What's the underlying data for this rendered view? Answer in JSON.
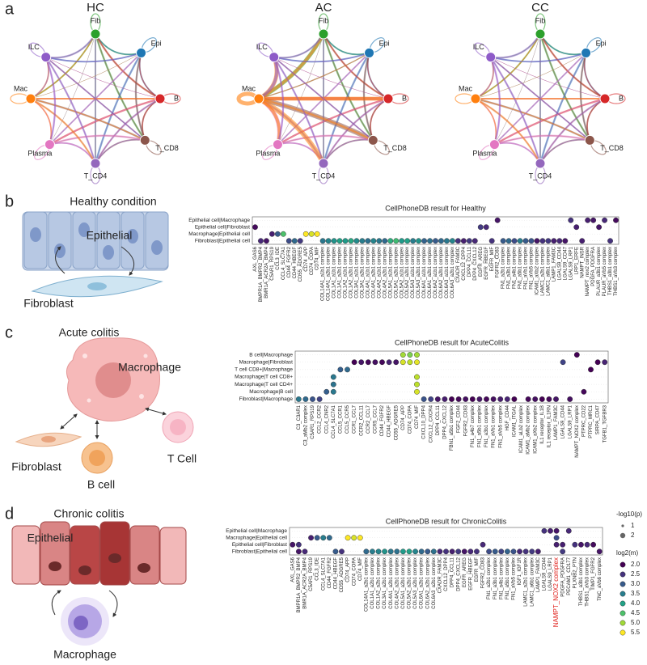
{
  "panel_labels": [
    "a",
    "b",
    "c",
    "d"
  ],
  "circle_plots": {
    "titles": [
      "HC",
      "AC",
      "CC"
    ],
    "nodes": [
      "Fib",
      "Epi",
      "B",
      "T_CD8",
      "T_CD4",
      "Plasma",
      "Mac",
      "ILC"
    ],
    "node_colors": [
      "#2ca02c",
      "#1f77b4",
      "#d62728",
      "#8c564b",
      "#9467bd",
      "#e377c2",
      "#ff7f0e",
      "#8e5bc8"
    ]
  },
  "cartoons": {
    "b": {
      "title": "Healthy condition",
      "labels": [
        "Epithelial",
        "Fibroblast"
      ]
    },
    "c": {
      "title": "Acute colitis",
      "labels": [
        "Macrophage",
        "Fibroblast",
        "B cell",
        "T Cell"
      ]
    },
    "d": {
      "title": "Chronic colitis",
      "labels": [
        "Epithelial",
        "Macrophage"
      ]
    }
  },
  "chart_data": [
    {
      "type": "dotplot",
      "title": "CellPhoneDB result for Healthy",
      "color_range": [
        2,
        5.5
      ],
      "rows": [
        "Epithelial cell|Macrophage",
        "Epithelial cell|Fibroblast",
        "Macrophage|Epithelial cell",
        "Fibroblast|Epithelial cell"
      ],
      "columns": [
        "AXL_GAS6",
        "BMPR1A_BMPR2_BMP4",
        "BMR1A_ACR2A_BMP4",
        "C5AR1_RPS19",
        "CCL3_IDE",
        "CCL4_SLC7A1",
        "CD44_FGFR2",
        "CD44_HBEGF",
        "CD55_ADGRE5",
        "CD74_APP",
        "CD74_COPA",
        "CD74_MIF",
        "COL14A1_a1b1 complex",
        "COL14A1_a2b1 complex",
        "COL1A1_a1b1 complex",
        "COL1A1_a2b1 complex",
        "COL1A2_a1b1 complex",
        "COL1A2_a2b1 complex",
        "COL3A1_a1b1 complex",
        "COL3A1_a2b1 complex",
        "COL4A1_a1b1 complex",
        "COL4A1_a2b1 complex",
        "COL4A2_a1b1 complex",
        "COL4A2_a2b1 complex",
        "COL5A1_a1b1 complex",
        "COL5A1_a2b1 complex",
        "COL5A2_a1b1 complex",
        "COL5A2_a2b1 complex",
        "COL5A3_a1b1 complex",
        "COL5A3_a2b1 complex",
        "COL6A1_a1b1 complex",
        "COL6A1_a2b1 complex",
        "COL6A2_a1b1 complex",
        "COL6A2_a2b1 complex",
        "COL6A3_a1b1 complex",
        "COL6A3_a2b1 complex",
        "CXADR_FAM3C",
        "CXCL12_DPP4",
        "DPP4_CCL11",
        "DPP4_CXCL12",
        "EGFR_AREG",
        "EGFR_HBEGF",
        "EGFR_MIF",
        "FGFR2_CD83",
        "FN1_a2b1 complex",
        "FN1_a3b1 complex",
        "FN1_a4b1 complex",
        "FN1_a5b1 complex",
        "FN1_aVb1 complex",
        "FN1_aVb5 complex",
        "ICAM1_aXb2 complex",
        "LAMC1_a2b1 complex",
        "LAMC1_a6b1 complex",
        "LAMP1_FAM3C",
        "LGALS9_CD44",
        "LGALS9_CD47",
        "LGALS9_LRP1",
        "LRP1_ERFE",
        "NAMPT_INSR",
        "NAMPT_nox2 complex",
        "PDGFA_PDGFRA",
        "PLAUR_a3b1 complex",
        "PLAUR_aVb5 complex",
        "THBS1_a3b1 complex",
        "THBS1_aVb3 complex"
      ],
      "values": [
        [
          null,
          null,
          null,
          null,
          null,
          null,
          null,
          null,
          null,
          null,
          null,
          null,
          null,
          null,
          null,
          null,
          null,
          null,
          null,
          null,
          null,
          null,
          null,
          null,
          null,
          null,
          null,
          null,
          null,
          null,
          null,
          null,
          null,
          null,
          null,
          null,
          null,
          null,
          null,
          null,
          null,
          null,
          null,
          2.2,
          null,
          null,
          null,
          null,
          null,
          null,
          null,
          null,
          null,
          null,
          null,
          null,
          2.5,
          null,
          null,
          2.3,
          2.2,
          null,
          2.4,
          null,
          2.1
        ],
        [
          2.1,
          null,
          null,
          null,
          null,
          null,
          null,
          null,
          null,
          null,
          null,
          null,
          null,
          null,
          null,
          null,
          null,
          null,
          null,
          null,
          null,
          null,
          null,
          null,
          null,
          null,
          null,
          null,
          null,
          null,
          null,
          null,
          null,
          null,
          null,
          null,
          null,
          null,
          null,
          null,
          2.6,
          2.4,
          null,
          null,
          null,
          null,
          null,
          null,
          null,
          null,
          null,
          null,
          null,
          null,
          null,
          null,
          null,
          2.3,
          null,
          null,
          null,
          2.2,
          null,
          null,
          null
        ],
        [
          null,
          null,
          null,
          2.3,
          3.0,
          4.5,
          null,
          null,
          null,
          5.5,
          5.3,
          5.5,
          null,
          null,
          null,
          null,
          null,
          null,
          null,
          null,
          null,
          null,
          null,
          null,
          null,
          null,
          null,
          null,
          null,
          null,
          null,
          null,
          null,
          null,
          null,
          null,
          null,
          null,
          null,
          null,
          null,
          null,
          null,
          null,
          null,
          null,
          null,
          null,
          null,
          null,
          null,
          null,
          null,
          null,
          null,
          null,
          null,
          null,
          null,
          null,
          null,
          null,
          null,
          null,
          null
        ],
        [
          null,
          2.4,
          2.2,
          null,
          null,
          null,
          2.8,
          3.2,
          2.6,
          null,
          null,
          null,
          3.4,
          3.6,
          3.8,
          4.0,
          3.9,
          4.1,
          3.7,
          3.5,
          3.3,
          3.6,
          3.4,
          3.2,
          4.2,
          4.4,
          3.9,
          4.0,
          3.5,
          3.8,
          3.1,
          3.3,
          3.0,
          3.2,
          3.4,
          3.6,
          2.5,
          2.3,
          2.6,
          2.4,
          null,
          null,
          2.5,
          null,
          3.0,
          3.2,
          2.8,
          3.5,
          3.0,
          2.9,
          2.2,
          2.5,
          2.6,
          2.3,
          2.4,
          2.2,
          null,
          null,
          2.3,
          null,
          null,
          null,
          null,
          2.5,
          null
        ]
      ]
    },
    {
      "type": "dotplot",
      "title": "CellPhoneDB result for AcuteColitis",
      "color_range": [
        1.5,
        6.5
      ],
      "rows": [
        "B cell|Macrophage",
        "Macrophage|Fibroblast",
        "T cell CD8+|Macrophage",
        "Macrophage|T cell CD8+",
        "Macrophage|T cell CD4+",
        "Macrophage|B cell",
        "Fibroblast|Macrophage"
      ],
      "columns": [
        "C3_C3AR1",
        "C3_aMb2 complex",
        "C5AR1_RPS19",
        "CCL2_CCR2",
        "CCL4_CNR2",
        "CCL4_SLC7A1",
        "CCL5_CCR1",
        "CCL5_CCR5",
        "CCR1_CCL7",
        "CCR2_CCL11",
        "CCR2_CCL7",
        "CCR5_CCL7",
        "CD44_FGFR2",
        "CD44_HBEGF",
        "CD55_ADGRE5",
        "CD74_APP",
        "CD74_COPA",
        "CD74_MIF",
        "CXCL10_DPP4",
        "CXCL12_CXCR4",
        "DPP4_CCL11",
        "DPP4_CXCL12",
        "FBN1_a5b1 complex",
        "FGF2_CD44",
        "FGFR2_CD83",
        "FN1_a4b7 complex",
        "FN1_a5b1 complex",
        "FN1_a3b1 complex",
        "FN1_aVb1 complex",
        "FN1_aVb5 complex",
        "HGF_CD44",
        "ICAM1_ITGAL",
        "ICAM1_aLb2 complex",
        "ICAM1_aMb2 complex",
        "ICAM1_aXb2 complex",
        "IL1 receptor_IL1B",
        "IL1 receptor_IL1RN",
        "LAMP1_FAM3C",
        "LGALS9_CD44",
        "LGALS9_LRP1",
        "NAMPT_NOX2 complex",
        "PTPRC_CD22",
        "PTPRC_MRC1",
        "SIRPA_CD47",
        "TGFB1_TGFBR3"
      ],
      "values": [
        [
          null,
          null,
          null,
          null,
          null,
          null,
          null,
          null,
          null,
          null,
          null,
          null,
          null,
          null,
          null,
          5.8,
          5.5,
          5.8,
          null,
          null,
          null,
          null,
          null,
          null,
          null,
          null,
          null,
          null,
          null,
          null,
          null,
          null,
          null,
          null,
          null,
          null,
          null,
          null,
          null,
          null,
          1.5,
          null,
          null,
          null,
          null
        ],
        [
          null,
          null,
          null,
          null,
          null,
          null,
          null,
          null,
          1.5,
          1.8,
          1.6,
          1.7,
          1.6,
          2.0,
          1.8,
          6.2,
          6.0,
          6.3,
          null,
          null,
          null,
          null,
          null,
          null,
          null,
          null,
          null,
          null,
          null,
          null,
          null,
          null,
          null,
          null,
          null,
          null,
          null,
          null,
          2.5,
          null,
          null,
          null,
          null,
          1.5,
          2.0
        ],
        [
          null,
          null,
          null,
          null,
          null,
          null,
          3.0,
          3.2,
          null,
          null,
          null,
          null,
          null,
          null,
          null,
          null,
          null,
          null,
          null,
          null,
          null,
          null,
          null,
          null,
          null,
          null,
          null,
          null,
          null,
          null,
          null,
          null,
          null,
          null,
          null,
          null,
          null,
          null,
          null,
          null,
          null,
          null,
          1.5,
          null,
          null
        ],
        [
          null,
          null,
          null,
          null,
          null,
          3.5,
          null,
          null,
          null,
          null,
          null,
          null,
          null,
          null,
          null,
          null,
          null,
          6.0,
          null,
          null,
          null,
          null,
          null,
          null,
          null,
          null,
          null,
          null,
          null,
          null,
          null,
          null,
          null,
          null,
          null,
          null,
          null,
          null,
          null,
          null,
          null,
          null,
          null,
          null,
          null
        ],
        [
          null,
          null,
          null,
          null,
          null,
          3.4,
          null,
          null,
          null,
          null,
          null,
          null,
          null,
          null,
          null,
          null,
          null,
          6.0,
          null,
          null,
          null,
          null,
          null,
          null,
          null,
          null,
          null,
          null,
          null,
          null,
          null,
          null,
          null,
          null,
          null,
          null,
          null,
          null,
          null,
          null,
          null,
          null,
          null,
          null,
          null
        ],
        [
          null,
          null,
          null,
          null,
          3.0,
          3.5,
          null,
          null,
          null,
          null,
          null,
          null,
          null,
          null,
          null,
          null,
          null,
          6.2,
          null,
          null,
          null,
          null,
          null,
          null,
          null,
          null,
          null,
          null,
          null,
          null,
          null,
          null,
          null,
          null,
          null,
          null,
          null,
          null,
          null,
          null,
          null,
          1.6,
          null,
          null,
          null
        ],
        [
          3.5,
          3.2,
          2.8,
          2.5,
          null,
          null,
          null,
          null,
          null,
          null,
          null,
          null,
          null,
          null,
          null,
          null,
          null,
          null,
          2.8,
          2.5,
          1.8,
          1.9,
          1.5,
          1.6,
          1.7,
          1.5,
          1.8,
          1.6,
          1.7,
          1.9,
          2.0,
          1.5,
          null,
          1.6,
          1.7,
          1.5,
          1.6,
          1.8,
          null,
          1.7,
          null,
          null,
          null,
          null,
          null
        ]
      ]
    },
    {
      "type": "dotplot",
      "title": "CellPhoneDB result for ChronicColitis",
      "rows": [
        "Epithelial cell|Macrophage",
        "Macrophage|Epithelial cell",
        "Epithelial cell|Fibroblast",
        "Fibroblast|Epithelial cell"
      ],
      "columns": [
        "AXL_GAS6",
        "BMPR1A_BMPR2_BMP4",
        "BMR1A_ACR2A_BMP4",
        "C5AR1_RPS19",
        "CCL3_IDE",
        "CCL4_SLC7A1",
        "CD44_FGFR2",
        "CD44_HBEGF",
        "CD55_ADGRE5",
        "CD74_APP",
        "CD74_COPA",
        "CD74_MIF",
        "COL14A1_a2b1 complex",
        "COL1A1_a2b1 complex",
        "COL1A2_a2b1 complex",
        "COL3A1_a2b1 complex",
        "COL4A1_a2b1 complex",
        "COL4A2_a2b1 complex",
        "COL5A1_a2b1 complex",
        "COL5A2_a2b1 complex",
        "COL5A3_a2b1 complex",
        "COL6A1_a2b1 complex",
        "COL6A2_a2b1 complex",
        "COL6A3_a2b1 complex",
        "CXADR_FAM3C",
        "CXCL12_DPP4",
        "DPP4_CCL11",
        "DPP4_CXCL12",
        "EGFR_AREG",
        "EGFR_HBEGF",
        "EGFR_MIF",
        "FGFR2_CD83",
        "FN1_a2b1 complex",
        "FN1_a3b1 complex",
        "FN1_a4b1 complex",
        "FN1_a5b1 complex",
        "FN1_aVb5 complex",
        "IGF1_IGF1R",
        "LAMC1_a2b1 complex",
        "LAMC1_a6b1 complex",
        "LAMP1_FAM3C",
        "LGALS9_CD44",
        "LGALS9_LRP1",
        "NAMPT_NOX2 complex",
        "PDGFA_PDGFRA",
        "PECAM1_CD177",
        "PLXNB2_PTN",
        "THBS1_a3b1 complex",
        "THBS1_aVb3 complex",
        "TIMP1_FGFR2",
        "TNC_aVb6 complex"
      ],
      "highlight_columns": [
        43
      ],
      "highlight_color": "#e0201b",
      "values": [
        [
          null,
          null,
          null,
          null,
          null,
          null,
          null,
          null,
          null,
          null,
          null,
          null,
          null,
          null,
          null,
          null,
          null,
          null,
          null,
          null,
          null,
          null,
          null,
          null,
          null,
          null,
          null,
          null,
          null,
          null,
          null,
          null,
          null,
          null,
          null,
          null,
          null,
          null,
          null,
          null,
          null,
          2.5,
          2.3,
          2.2,
          null,
          2.4,
          null,
          null,
          null,
          null,
          null
        ],
        [
          null,
          null,
          null,
          2.3,
          3.0,
          3.5,
          3.2,
          null,
          null,
          5.5,
          5.3,
          5.5,
          null,
          null,
          null,
          null,
          null,
          null,
          null,
          null,
          null,
          null,
          null,
          null,
          null,
          null,
          null,
          null,
          null,
          null,
          null,
          null,
          null,
          null,
          null,
          null,
          null,
          null,
          null,
          null,
          null,
          null,
          null,
          2.8,
          null,
          null,
          null,
          null,
          null,
          null,
          null
        ],
        [
          2.2,
          2.5,
          null,
          null,
          null,
          null,
          null,
          null,
          null,
          null,
          null,
          null,
          null,
          null,
          null,
          null,
          null,
          null,
          null,
          null,
          null,
          null,
          null,
          null,
          null,
          null,
          null,
          null,
          null,
          null,
          null,
          2.4,
          null,
          null,
          null,
          null,
          null,
          null,
          null,
          null,
          null,
          null,
          null,
          2.3,
          2.3,
          null,
          2.5,
          2.2,
          2.4,
          2.1,
          null
        ],
        [
          null,
          2.2,
          2.4,
          null,
          null,
          null,
          null,
          3.0,
          2.5,
          null,
          null,
          null,
          3.2,
          3.5,
          3.6,
          3.8,
          3.4,
          3.3,
          3.9,
          4.0,
          3.6,
          3.2,
          3.0,
          3.3,
          2.4,
          2.5,
          2.3,
          2.6,
          2.2,
          2.4,
          2.5,
          null,
          2.8,
          3.0,
          2.7,
          3.1,
          2.9,
          2.4,
          2.5,
          2.6,
          2.3,
          null,
          null,
          null,
          2.6,
          null,
          null,
          null,
          null,
          null,
          2.2
        ]
      ],
      "legend": {
        "size_title": "-log10(p)",
        "size_ticks": [
          1,
          2
        ],
        "color_title": "log2(m)",
        "color_ticks": [
          {
            "value": 2,
            "label": "2.0"
          },
          2.5,
          {
            "value": 3,
            "label": "3.0"
          },
          3.5,
          {
            "value": 4,
            "label": "4.0"
          },
          4.5,
          {
            "value": 5,
            "label": "5.0"
          },
          5.5
        ]
      }
    }
  ]
}
